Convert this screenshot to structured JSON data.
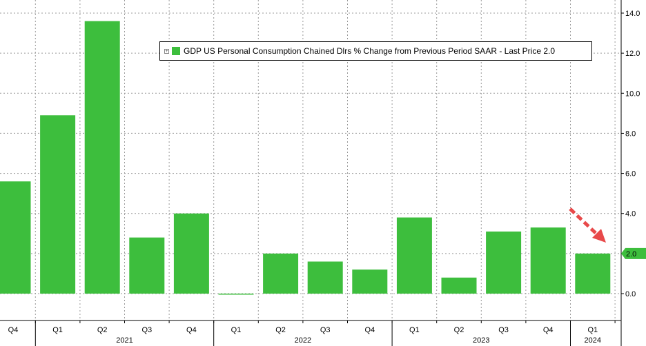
{
  "colors": {
    "bar": "#3DBE3D",
    "grid": "#999999",
    "arrow": "#E8494A",
    "price_tag": "#3DBE3D"
  },
  "legend": {
    "expand_icon": "plus-box-icon",
    "label": "GDP US Personal Consumption Chained Dlrs % Change from Previous Period SAAR - Last Price 2.0"
  },
  "price_tag": "2.0",
  "chart_data": {
    "type": "bar",
    "title": "",
    "xlabel": "",
    "ylabel": "",
    "quarters": [
      "Q4",
      "Q1",
      "Q2",
      "Q3",
      "Q4",
      "Q1",
      "Q2",
      "Q3",
      "Q4",
      "Q1",
      "Q2",
      "Q3",
      "Q4",
      "Q1"
    ],
    "years": [
      {
        "label": "2021",
        "from": 1,
        "to": 4
      },
      {
        "label": "2022",
        "from": 5,
        "to": 8
      },
      {
        "label": "2023",
        "from": 9,
        "to": 12
      },
      {
        "label": "2024",
        "from": 13,
        "to": 13
      }
    ],
    "values": [
      5.6,
      8.9,
      13.6,
      2.8,
      4.0,
      0.0,
      2.0,
      1.6,
      1.2,
      3.8,
      0.8,
      3.1,
      3.3,
      2.0
    ],
    "ylim": [
      -1.5,
      14.5
    ],
    "yticks": [
      "0.0",
      "2.0",
      "4.0",
      "6.0",
      "8.0",
      "10.0",
      "12.0",
      "14.0"
    ],
    "y_axis_side": "right",
    "grid": true,
    "legend_position": "top-right",
    "annotation": "red dashed arrow pointing to last bar"
  }
}
